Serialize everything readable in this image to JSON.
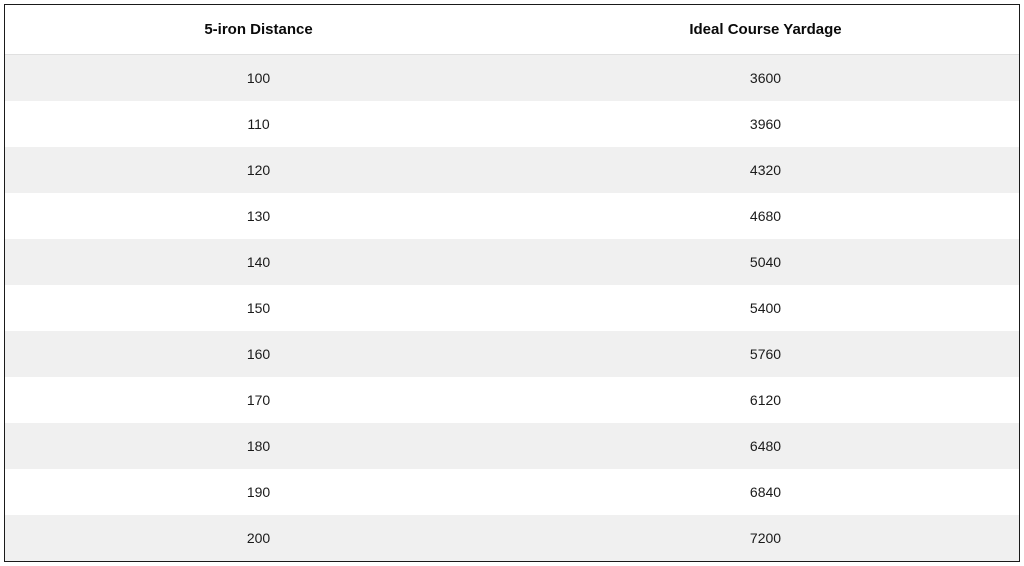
{
  "table": {
    "type": "table",
    "columns": [
      {
        "label": "5-iron Distance",
        "alignment": "center"
      },
      {
        "label": "Ideal Course Yardage",
        "alignment": "center"
      }
    ],
    "rows": [
      [
        "100",
        "3600"
      ],
      [
        "110",
        "3960"
      ],
      [
        "120",
        "4320"
      ],
      [
        "130",
        "4680"
      ],
      [
        "140",
        "5040"
      ],
      [
        "150",
        "5400"
      ],
      [
        "160",
        "5760"
      ],
      [
        "170",
        "6120"
      ],
      [
        "180",
        "6480"
      ],
      [
        "190",
        "6840"
      ],
      [
        "200",
        "7200"
      ]
    ],
    "styles": {
      "border_color": "#1a1a1a",
      "header_background": "#ffffff",
      "row_odd_background": "#f0f0f0",
      "row_even_background": "#ffffff",
      "header_font_weight": 700,
      "header_font_size": 15,
      "body_font_size": 14,
      "text_color": "#1a1a1a",
      "cell_padding_vertical": 15,
      "cell_padding_horizontal": 10
    }
  }
}
